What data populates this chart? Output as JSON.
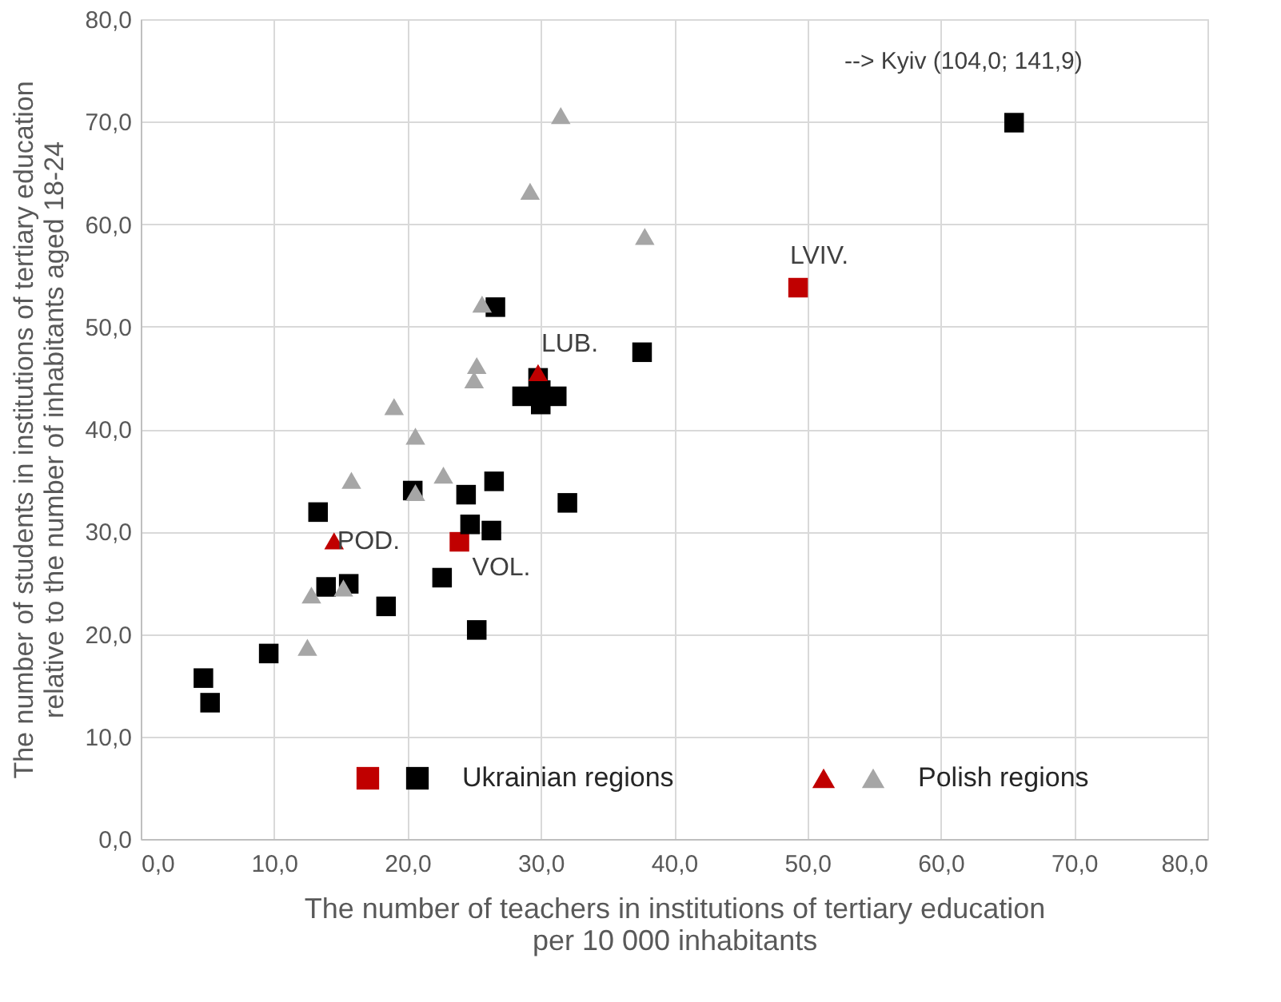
{
  "chart_data": {
    "type": "scatter",
    "xlabel": "The number of teachers in institutions of tertiary education\nper 10 000 inhabitants",
    "ylabel": "The number of students in institutions of tertiary education\nrelative to the number of inhabitants aged 18-24",
    "xlim": [
      0,
      80
    ],
    "ylim": [
      0,
      80
    ],
    "xticks": [
      {
        "value": 0,
        "label": "0,0"
      },
      {
        "value": 10,
        "label": "10,0"
      },
      {
        "value": 20,
        "label": "20,0"
      },
      {
        "value": 30,
        "label": "30,0"
      },
      {
        "value": 40,
        "label": "40,0"
      },
      {
        "value": 50,
        "label": "50,0"
      },
      {
        "value": 60,
        "label": "60,0"
      },
      {
        "value": 70,
        "label": "70,0"
      },
      {
        "value": 80,
        "label": "80,0"
      }
    ],
    "yticks": [
      {
        "value": 0,
        "label": "0,0"
      },
      {
        "value": 10,
        "label": "10,0"
      },
      {
        "value": 20,
        "label": "20,0"
      },
      {
        "value": 30,
        "label": "30,0"
      },
      {
        "value": 40,
        "label": "40,0"
      },
      {
        "value": 50,
        "label": "50,0"
      },
      {
        "value": 60,
        "label": "60,0"
      },
      {
        "value": 70,
        "label": "70,0"
      },
      {
        "value": 80,
        "label": "80,0"
      }
    ],
    "grid": true,
    "legend": "bottom",
    "series": [
      {
        "color": "#c00000",
        "marker": "square",
        "x": [
          49.3,
          23.9
        ],
        "values": [
          53.8,
          29.0
        ]
      },
      {
        "name": "Ukrainian regions",
        "color": "#000000",
        "marker": "square",
        "x": [
          65.5,
          37.6,
          26.6,
          29.8,
          28.6,
          31.2,
          30.0,
          30.0,
          20.4,
          24.4,
          26.5,
          32.0,
          13.3,
          24.7,
          26.3,
          22.6,
          13.9,
          15.6,
          18.4,
          25.2,
          9.6,
          4.7,
          5.2
        ],
        "values": [
          69.9,
          47.5,
          51.9,
          45.0,
          43.2,
          43.2,
          42.4,
          43.8,
          34.0,
          33.6,
          34.9,
          32.8,
          31.9,
          30.7,
          30.1,
          25.5,
          24.6,
          24.9,
          22.7,
          20.4,
          18.1,
          15.7,
          13.3
        ]
      },
      {
        "color": "#c00000",
        "marker": "triangle",
        "x": [
          29.8,
          14.5
        ],
        "values": [
          45.5,
          29.1
        ]
      },
      {
        "name": "Polish regions",
        "color": "#a6a6a6",
        "marker": "triangle",
        "x": [
          31.5,
          29.2,
          37.8,
          25.6,
          25.2,
          25.0,
          19.0,
          20.6,
          15.8,
          22.7,
          20.6,
          12.8,
          15.2,
          12.5
        ],
        "values": [
          70.6,
          63.2,
          58.8,
          52.2,
          46.2,
          44.8,
          42.2,
          39.3,
          35.0,
          35.5,
          33.8,
          23.8,
          24.5,
          18.7
        ]
      }
    ],
    "annotations": [
      {
        "text": "LVIV.",
        "x": 49.3,
        "y": 53.8
      },
      {
        "text": "VOL.",
        "x": 23.9,
        "y": 29.0
      },
      {
        "text": "LUB.",
        "x": 29.8,
        "y": 45.5
      },
      {
        "text": "POD.",
        "x": 14.5,
        "y": 29.1
      },
      "--> Kyiv (104,0; 141,9)"
    ]
  }
}
